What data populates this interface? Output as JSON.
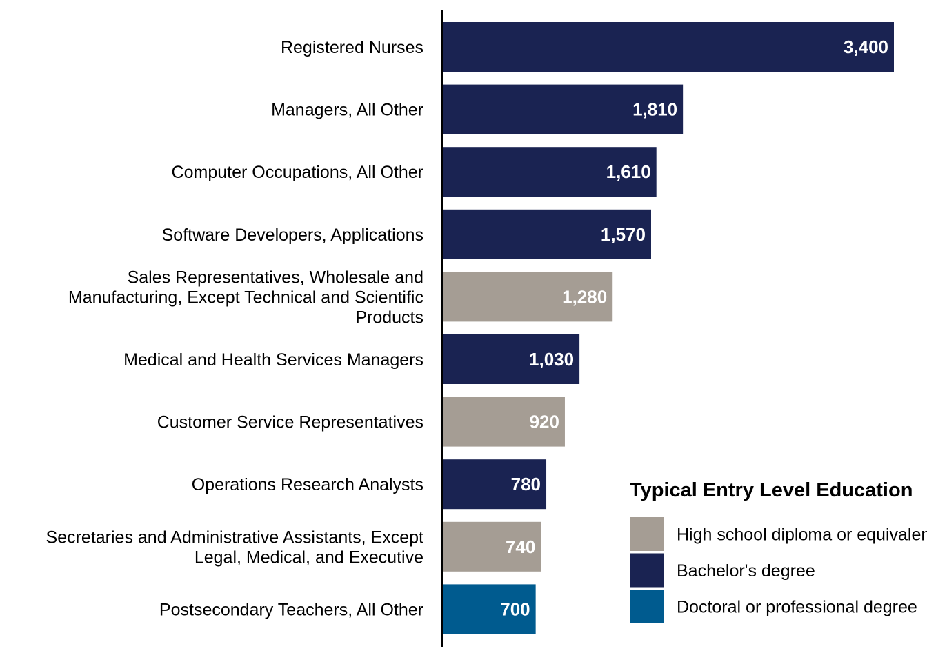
{
  "chart_data": {
    "type": "bar",
    "orientation": "horizontal",
    "categories": [
      [
        "Registered Nurses"
      ],
      [
        "Managers, All Other"
      ],
      [
        "Computer Occupations, All Other"
      ],
      [
        "Software Developers, Applications"
      ],
      [
        "Sales Representatives, Wholesale and",
        "Manufacturing, Except Technical and Scientific",
        "Products"
      ],
      [
        "Medical and Health Services Managers"
      ],
      [
        "Customer Service Representatives"
      ],
      [
        "Operations Research Analysts"
      ],
      [
        "Secretaries and Administrative Assistants, Except",
        "Legal, Medical, and Executive"
      ],
      [
        "Postsecondary Teachers, All Other"
      ]
    ],
    "values": [
      3400,
      1810,
      1610,
      1570,
      1280,
      1030,
      920,
      780,
      740,
      700
    ],
    "value_labels": [
      "3,400",
      "1,810",
      "1,610",
      "1,570",
      "1,280",
      "1,030",
      "920",
      "780",
      "740",
      "700"
    ],
    "groups": [
      "bachelor",
      "bachelor",
      "bachelor",
      "bachelor",
      "highschool",
      "bachelor",
      "highschool",
      "bachelor",
      "highschool",
      "doctoral"
    ],
    "xlim": [
      0,
      3600
    ],
    "grid": false,
    "legend": {
      "title": "Typical Entry Level Education",
      "position": "bottom-right",
      "items": [
        {
          "key": "highschool",
          "label": "High school diploma or equivalent",
          "color": "#a59d94"
        },
        {
          "key": "bachelor",
          "label": "Bachelor's degree",
          "color": "#1a2352"
        },
        {
          "key": "doctoral",
          "label": "Doctoral or professional degree",
          "color": "#005b8f"
        }
      ]
    }
  }
}
